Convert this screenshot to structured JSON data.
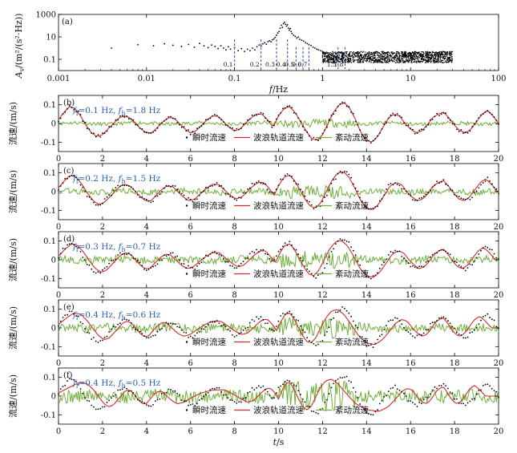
{
  "colors": {
    "instant": "#000000",
    "orbital": "#d42a2a",
    "turbulent": "#6fae3c",
    "cutoff_line": "#2a5db0",
    "annotation": "#2a5db0"
  },
  "chart_data": [
    {
      "panel": "(a)",
      "type": "scatter",
      "xscale": "log",
      "yscale": "log",
      "xlim": [
        0.001,
        100
      ],
      "ylim": [
        0.01,
        1000
      ],
      "xlabel_italic": "f",
      "xlabel_rest": "/Hz",
      "ylabel_main": "A",
      "ylabel_sub": "v",
      "ylabel_rest": "/(m²/(s²·Hz))",
      "xticks": [
        "0.001",
        "0.01",
        "0.1",
        "1",
        "10",
        "100"
      ],
      "yticks": [
        "1000",
        "10",
        "0.1"
      ],
      "spectrum_points": [
        [
          0.004,
          1.0
        ],
        [
          0.008,
          2.0
        ],
        [
          0.012,
          1.6
        ],
        [
          0.016,
          2.4
        ],
        [
          0.02,
          1.8
        ],
        [
          0.025,
          1.4
        ],
        [
          0.03,
          2.1
        ],
        [
          0.035,
          1.2
        ],
        [
          0.04,
          2.6
        ],
        [
          0.045,
          1.6
        ],
        [
          0.05,
          1.1
        ],
        [
          0.055,
          1.9
        ],
        [
          0.06,
          1.4
        ],
        [
          0.065,
          0.9
        ],
        [
          0.07,
          1.6
        ],
        [
          0.075,
          1.0
        ],
        [
          0.08,
          0.7
        ],
        [
          0.085,
          1.3
        ],
        [
          0.09,
          0.8
        ],
        [
          0.1,
          1.1
        ],
        [
          0.11,
          0.6
        ],
        [
          0.12,
          0.9
        ],
        [
          0.13,
          0.5
        ],
        [
          0.14,
          0.8
        ],
        [
          0.15,
          0.6
        ],
        [
          0.16,
          1.0
        ],
        [
          0.17,
          0.7
        ],
        [
          0.18,
          1.3
        ],
        [
          0.19,
          1.9
        ],
        [
          0.2,
          1.5
        ],
        [
          0.21,
          2.4
        ],
        [
          0.22,
          3.0
        ],
        [
          0.23,
          2.2
        ],
        [
          0.24,
          3.8
        ],
        [
          0.25,
          4.5
        ],
        [
          0.26,
          3.6
        ],
        [
          0.27,
          5.5
        ],
        [
          0.28,
          6.8
        ],
        [
          0.29,
          9.0
        ],
        [
          0.3,
          14.0
        ],
        [
          0.31,
          22.0
        ],
        [
          0.32,
          30.0
        ],
        [
          0.33,
          60.0
        ],
        [
          0.34,
          110.0
        ],
        [
          0.35,
          70.0
        ],
        [
          0.36,
          150.0
        ],
        [
          0.37,
          200.0
        ],
        [
          0.38,
          130.0
        ],
        [
          0.39,
          90.0
        ],
        [
          0.4,
          120.0
        ],
        [
          0.41,
          60.0
        ],
        [
          0.42,
          40.0
        ],
        [
          0.43,
          55.0
        ],
        [
          0.44,
          30.0
        ],
        [
          0.45,
          20.0
        ],
        [
          0.47,
          14.0
        ],
        [
          0.49,
          11.0
        ],
        [
          0.51,
          8.0
        ],
        [
          0.53,
          9.5
        ],
        [
          0.55,
          6.0
        ],
        [
          0.58,
          5.0
        ],
        [
          0.61,
          4.2
        ],
        [
          0.64,
          3.1
        ],
        [
          0.67,
          2.5
        ],
        [
          0.7,
          2.0
        ],
        [
          0.74,
          1.7
        ],
        [
          0.78,
          1.2
        ],
        [
          0.82,
          1.0
        ],
        [
          0.86,
          0.8
        ],
        [
          0.9,
          0.7
        ],
        [
          0.95,
          0.6
        ],
        [
          1.0,
          0.5
        ]
      ],
      "noise_floor": {
        "fmin": 1.0,
        "fmax": 30.0,
        "amin": 0.05,
        "amax": 0.5
      },
      "cutoff_lines": [
        0.1,
        0.2,
        0.3,
        0.4,
        0.5,
        0.6,
        0.7,
        1.5,
        1.8
      ],
      "cutoff_labels": [
        "0.1",
        "0.2",
        "0.3",
        "0.4",
        "0.5",
        "0.6",
        "0.7",
        "1.5",
        "1.8"
      ]
    },
    {
      "panel": "(b)",
      "type": "line",
      "f_low": "0.1",
      "f_high": "1.8",
      "xlim": [
        0,
        20
      ],
      "ylim": [
        -0.15,
        0.15
      ],
      "xticks": [
        "0",
        "2",
        "4",
        "6",
        "8",
        "10",
        "12",
        "14",
        "16",
        "18",
        "20"
      ],
      "yticks": [
        "0.1",
        "0",
        "-0.1"
      ],
      "ylabel": "流速/(m/s)",
      "legend": [
        "瞬时流速",
        "波浪轨道流速",
        "紊动流速"
      ]
    },
    {
      "panel": "(c)",
      "type": "line",
      "f_low": "0.2",
      "f_high": "1.5",
      "xlim": [
        0,
        20
      ],
      "ylim": [
        -0.15,
        0.15
      ],
      "xticks": [
        "0",
        "2",
        "4",
        "6",
        "8",
        "10",
        "12",
        "14",
        "16",
        "18",
        "20"
      ],
      "yticks": [
        "0.1",
        "0",
        "-0.1"
      ],
      "ylabel": "流速/(m/s)",
      "legend": [
        "瞬时流速",
        "波浪轨道流速",
        "紊动流速"
      ]
    },
    {
      "panel": "(d)",
      "type": "line",
      "f_low": "0.3",
      "f_high": "0.7",
      "xlim": [
        0,
        20
      ],
      "ylim": [
        -0.15,
        0.15
      ],
      "xticks": [
        "0",
        "2",
        "4",
        "6",
        "8",
        "10",
        "12",
        "14",
        "16",
        "18",
        "20"
      ],
      "yticks": [
        "0.1",
        "0",
        "-0.1"
      ],
      "ylabel": "流速/(m/s)",
      "legend": [
        "瞬时流速",
        "波浪轨道流速",
        "紊动流速"
      ]
    },
    {
      "panel": "(e)",
      "type": "line",
      "f_low": "0.4",
      "f_high": "0.6",
      "xlim": [
        0,
        20
      ],
      "ylim": [
        -0.15,
        0.15
      ],
      "xticks": [
        "0",
        "2",
        "4",
        "6",
        "8",
        "10",
        "12",
        "14",
        "16",
        "18",
        "20"
      ],
      "yticks": [
        "0.1",
        "0",
        "-0.1"
      ],
      "ylabel": "流速/(m/s)",
      "legend": [
        "瞬时流速",
        "波浪轨道流速",
        "紊动流速"
      ]
    },
    {
      "panel": "(f)",
      "type": "line",
      "f_low": "0.4",
      "f_high": "0.5",
      "xlim": [
        0,
        20
      ],
      "ylim": [
        -0.15,
        0.15
      ],
      "xticks": [
        "0",
        "2",
        "4",
        "6",
        "8",
        "10",
        "12",
        "14",
        "16",
        "18",
        "20"
      ],
      "yticks": [
        "0.1",
        "0",
        "-0.1"
      ],
      "ylabel": "流速/(m/s)",
      "legend": [
        "瞬时流速",
        "波浪轨道流速",
        "紊动流速"
      ],
      "xlabel_italic": "t",
      "xlabel_rest": "/s"
    }
  ],
  "velocity_series": {
    "description_units": "m/s",
    "t_step": 0.25,
    "t": [
      0,
      0.25,
      0.5,
      0.75,
      1,
      1.25,
      1.5,
      1.75,
      2,
      2.25,
      2.5,
      2.75,
      3,
      3.25,
      3.5,
      3.75,
      4,
      4.25,
      4.5,
      4.75,
      5,
      5.25,
      5.5,
      5.75,
      6,
      6.25,
      6.5,
      6.75,
      7,
      7.25,
      7.5,
      7.75,
      8,
      8.25,
      8.5,
      8.75,
      9,
      9.25,
      9.5,
      9.75,
      10,
      10.25,
      10.5,
      10.75,
      11,
      11.25,
      11.5,
      11.75,
      12,
      12.25,
      12.5,
      12.75,
      13,
      13.25,
      13.5,
      13.75,
      14,
      14.25,
      14.5,
      14.75,
      15,
      15.25,
      15.5,
      15.75,
      16,
      16.25,
      16.5,
      16.75,
      17,
      17.25,
      17.5,
      17.75,
      18,
      18.25,
      18.5,
      18.75,
      19,
      19.25,
      19.5,
      19.75,
      20
    ],
    "instant": [
      0.02,
      0.06,
      0.09,
      0.08,
      0.04,
      -0.01,
      -0.05,
      -0.07,
      -0.06,
      -0.03,
      0.0,
      0.03,
      0.04,
      0.03,
      0.0,
      -0.03,
      -0.05,
      -0.05,
      -0.02,
      0.01,
      0.03,
      0.03,
      0.0,
      -0.03,
      -0.05,
      -0.04,
      -0.01,
      0.02,
      0.04,
      0.04,
      0.01,
      -0.02,
      -0.04,
      -0.03,
      0.0,
      0.03,
      0.05,
      0.05,
      0.02,
      -0.02,
      0.04,
      0.08,
      0.09,
      0.06,
      0.01,
      -0.04,
      -0.08,
      -0.09,
      -0.06,
      0.0,
      0.06,
      0.1,
      0.11,
      0.08,
      0.02,
      -0.05,
      -0.09,
      -0.1,
      -0.07,
      -0.02,
      0.03,
      0.05,
      0.04,
      0.0,
      -0.03,
      -0.05,
      -0.04,
      -0.01,
      0.03,
      0.05,
      0.06,
      0.03,
      -0.01,
      -0.04,
      -0.05,
      -0.03,
      0.01,
      0.05,
      0.07,
      0.04,
      0.0
    ]
  }
}
